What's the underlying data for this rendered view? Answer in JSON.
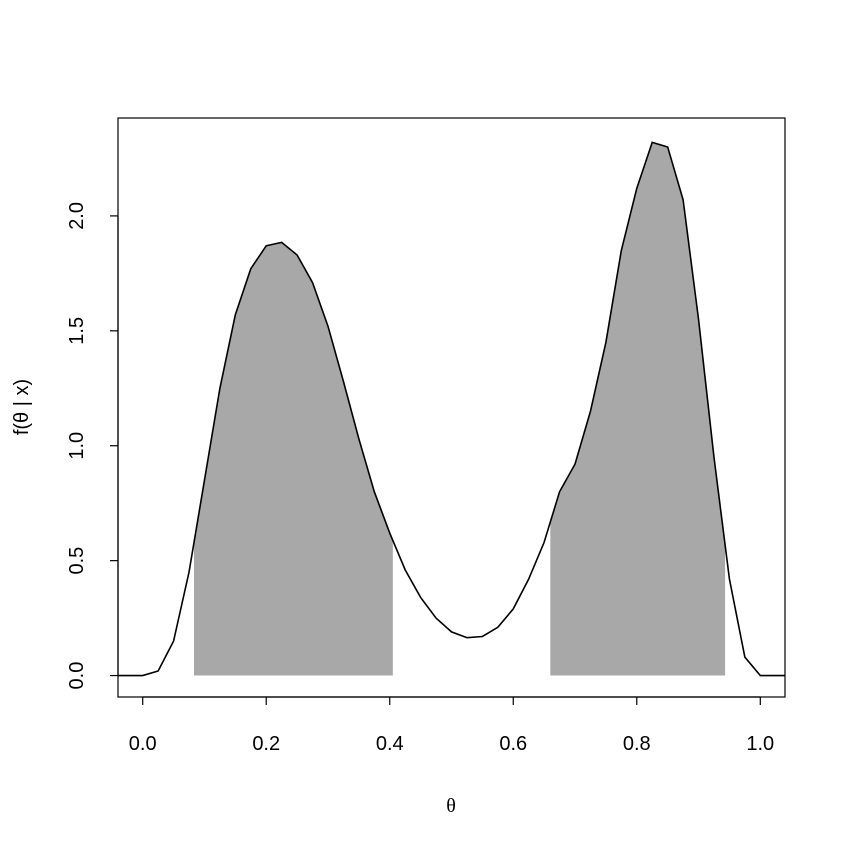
{
  "chart_data": {
    "type": "density",
    "x_label": "θ",
    "y_label": "f(θ | x)",
    "x": [
      -0.04,
      0,
      0.025,
      0.05,
      0.075,
      0.1,
      0.125,
      0.15,
      0.175,
      0.2,
      0.225,
      0.25,
      0.275,
      0.3,
      0.325,
      0.35,
      0.375,
      0.4,
      0.425,
      0.45,
      0.475,
      0.5,
      0.525,
      0.55,
      0.575,
      0.6,
      0.625,
      0.65,
      0.675,
      0.7,
      0.725,
      0.75,
      0.775,
      0.8,
      0.825,
      0.85,
      0.875,
      0.9,
      0.925,
      0.95,
      0.975,
      1.0,
      1.04
    ],
    "values": [
      0,
      0,
      0.02,
      0.15,
      0.45,
      0.85,
      1.25,
      1.57,
      1.77,
      1.87,
      1.885,
      1.83,
      1.71,
      1.52,
      1.28,
      1.03,
      0.8,
      0.62,
      0.46,
      0.34,
      0.25,
      0.19,
      0.165,
      0.17,
      0.21,
      0.29,
      0.42,
      0.58,
      0.8,
      0.92,
      1.15,
      1.45,
      1.85,
      2.12,
      2.32,
      2.3,
      2.07,
      1.55,
      0.95,
      0.42,
      0.08,
      0,
      0
    ],
    "color": "#000000",
    "shaded_intervals": [
      [
        0.083,
        0.405
      ],
      [
        0.66,
        0.943
      ]
    ],
    "shade_color": "#a8a8a8",
    "xlim": [
      -0.04,
      1.04
    ],
    "ylim": [
      -0.0933,
      2.426
    ],
    "xticks": [
      {
        "value": 0,
        "label": "0.0"
      },
      {
        "value": 0.2,
        "label": "0.2"
      },
      {
        "value": 0.4,
        "label": "0.4"
      },
      {
        "value": 0.6,
        "label": "0.6"
      },
      {
        "value": 0.8,
        "label": "0.8"
      },
      {
        "value": 1,
        "label": "1.0"
      }
    ],
    "yticks": [
      {
        "value": 0,
        "label": "0.0"
      },
      {
        "value": 0.5,
        "label": "0.5"
      },
      {
        "value": 1,
        "label": "1.0"
      },
      {
        "value": 1.5,
        "label": "1.5"
      },
      {
        "value": 2,
        "label": "2.0"
      }
    ]
  }
}
